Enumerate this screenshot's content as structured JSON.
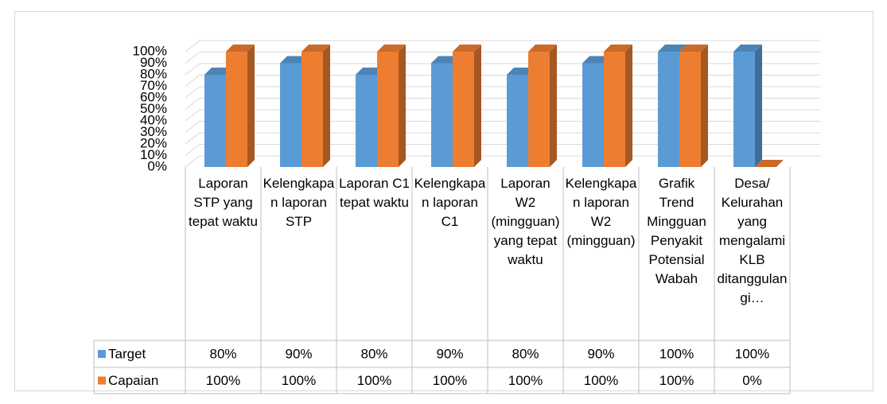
{
  "chart_data": {
    "type": "bar",
    "categories": [
      "Laporan STP yang tepat waktu",
      "Kelengkapan laporan STP",
      "Laporan C1 tepat waktu",
      "Kelengkapan laporan C1",
      "Laporan W2 (mingguan) yang tepat waktu",
      "Kelengkapan laporan W2 (mingguan)",
      "Grafik Trend Mingguan Penyakit Potensial Wabah",
      "Desa/ Kelurahan yang mengalami KLB ditanggulangi…"
    ],
    "series": [
      {
        "name": "Target",
        "color": "#5b9bd5",
        "values": [
          80,
          90,
          80,
          90,
          80,
          90,
          100,
          100
        ],
        "value_labels": [
          "80%",
          "90%",
          "80%",
          "90%",
          "80%",
          "90%",
          "100%",
          "100%"
        ]
      },
      {
        "name": "Capaian",
        "color": "#ed7d31",
        "values": [
          100,
          100,
          100,
          100,
          100,
          100,
          100,
          0
        ],
        "value_labels": [
          "100%",
          "100%",
          "100%",
          "100%",
          "100%",
          "100%",
          "100%",
          "0%"
        ]
      }
    ],
    "ylim": [
      0,
      100
    ],
    "yticks": [
      {
        "value": 0,
        "label": "0%"
      },
      {
        "value": 10,
        "label": "10%"
      },
      {
        "value": 20,
        "label": "20%"
      },
      {
        "value": 30,
        "label": "30%"
      },
      {
        "value": 40,
        "label": "40%"
      },
      {
        "value": 50,
        "label": "50%"
      },
      {
        "value": 60,
        "label": "60%"
      },
      {
        "value": 70,
        "label": "70%"
      },
      {
        "value": 80,
        "label": "80%"
      },
      {
        "value": 90,
        "label": "90%"
      },
      {
        "value": 100,
        "label": "100%"
      }
    ],
    "grid": true
  }
}
